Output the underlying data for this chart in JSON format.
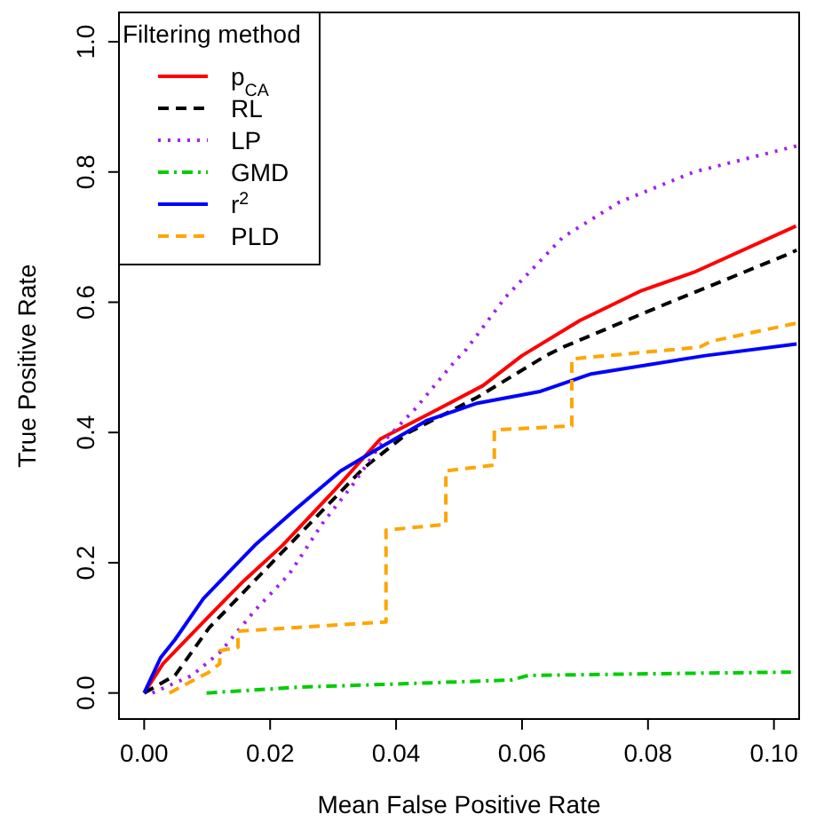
{
  "chart_data": {
    "type": "line",
    "xlabel": "Mean False Positive Rate",
    "ylabel": "True Positive Rate",
    "legend_title": "Filtering method",
    "legend": "top left",
    "grid": false,
    "xlim": [
      -0.004,
      0.104
    ],
    "ylim": [
      -0.04,
      1.045
    ],
    "xticks": [
      {
        "value": 0,
        "label": "0.00"
      },
      {
        "value": 0.02,
        "label": "0.02"
      },
      {
        "value": 0.04,
        "label": "0.04"
      },
      {
        "value": 0.06,
        "label": "0.06"
      },
      {
        "value": 0.08,
        "label": "0.08"
      },
      {
        "value": 0.1,
        "label": "0.10"
      }
    ],
    "yticks": [
      {
        "value": 0,
        "label": "0.0"
      },
      {
        "value": 0.2,
        "label": "0.2"
      },
      {
        "value": 0.4,
        "label": "0.4"
      },
      {
        "value": 0.6,
        "label": "0.6"
      },
      {
        "value": 0.8,
        "label": "0.8"
      },
      {
        "value": 1,
        "label": "1.0"
      }
    ],
    "series": [
      {
        "name": "p$_{CA}$",
        "color": "#ff0000",
        "line_style": "solid",
        "x": [
          0,
          0.003,
          0.0103,
          0.0158,
          0.022,
          0.03,
          0.0375,
          0.0457,
          0.0538,
          0.06,
          0.0692,
          0.079,
          0.0873,
          0.1035
        ],
        "values": [
          0,
          0.045,
          0.118,
          0.172,
          0.227,
          0.309,
          0.39,
          0.431,
          0.472,
          0.518,
          0.572,
          0.618,
          0.646,
          0.717
        ]
      },
      {
        "name": "RL",
        "color": "#000000",
        "line_style": "dashed",
        "x": [
          0,
          0.0049,
          0.0103,
          0.0185,
          0.0257,
          0.0348,
          0.042,
          0.0529,
          0.0638,
          0.0665,
          0.081,
          0.1018,
          0.1036
        ],
        "values": [
          0,
          0.027,
          0.1,
          0.182,
          0.254,
          0.345,
          0.4,
          0.454,
          0.518,
          0.531,
          0.59,
          0.672,
          0.68
        ]
      },
      {
        "name": "LP",
        "color": "#a020f0",
        "line_style": "dotted",
        "x": [
          0.0013,
          0.0076,
          0.0121,
          0.0176,
          0.023,
          0.0285,
          0.033,
          0.0375,
          0.043,
          0.0493,
          0.0511,
          0.0574,
          0.0665,
          0.0755,
          0.0873,
          0.1036
        ],
        "values": [
          0,
          0.027,
          0.063,
          0.127,
          0.182,
          0.263,
          0.318,
          0.381,
          0.436,
          0.509,
          0.527,
          0.608,
          0.7,
          0.754,
          0.8,
          0.84
        ]
      },
      {
        "name": "GMD",
        "color": "#00cd00",
        "line_style": "dashdot",
        "x": [
          0.0099,
          0.0248,
          0.0438,
          0.0583,
          0.061,
          0.0846,
          0.1027
        ],
        "values": [
          0,
          0.009,
          0.015,
          0.02,
          0.027,
          0.03,
          0.032
        ]
      },
      {
        "name": "r$^{2}$",
        "color": "#0000ff",
        "line_style": "solid",
        "x": [
          0,
          0.0026,
          0.0049,
          0.0094,
          0.0176,
          0.0239,
          0.0312,
          0.0366,
          0.0448,
          0.0529,
          0.0629,
          0.071,
          0.0891,
          0.1036
        ],
        "values": [
          0,
          0.054,
          0.082,
          0.145,
          0.227,
          0.281,
          0.341,
          0.372,
          0.418,
          0.445,
          0.463,
          0.49,
          0.518,
          0.536
        ]
      },
      {
        "name": "PLD",
        "color": "#ffa500",
        "line_style": "dashed",
        "x": [
          0.004,
          0.0103,
          0.012,
          0.012,
          0.0149,
          0.0149,
          0.0384,
          0.0384,
          0.0479,
          0.0479,
          0.0556,
          0.0556,
          0.0679,
          0.0679,
          0.0882,
          0.09,
          0.1036
        ],
        "values": [
          0,
          0.032,
          0.045,
          0.065,
          0.07,
          0.095,
          0.109,
          0.25,
          0.259,
          0.341,
          0.35,
          0.404,
          0.41,
          0.513,
          0.531,
          0.54,
          0.568
        ]
      }
    ]
  }
}
